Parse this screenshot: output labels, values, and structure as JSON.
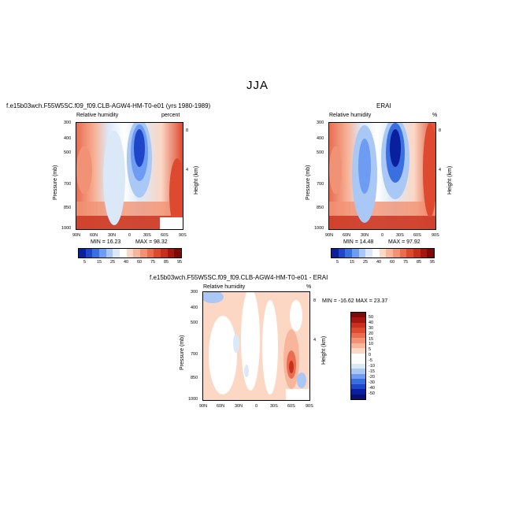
{
  "season": "JJA",
  "panels": [
    {
      "id": "model",
      "title": "f.e15b03wch.F55W5SC.f09_f09.CLB-AGW4-HM-T0-e01 (yrs 1980-1989)",
      "subtitle_left": "Relative humidity",
      "subtitle_right": "percent",
      "min_label": "MIN =   16.23",
      "max_label": "MAX =   98.32"
    },
    {
      "id": "obs",
      "title": "ERAI",
      "subtitle_left": "Relative humidity",
      "subtitle_right": "%",
      "min_label": "MIN =   14.48",
      "max_label": "MAX =   97.92"
    },
    {
      "id": "diff",
      "title": "f.e15b03wch.F55W5SC.f09_f09.CLB-AGW4-HM-T0-e01 - ERAI",
      "subtitle_left": "Relative humidity",
      "subtitle_right": "%",
      "minmax_label": "MIN = -16.62   MAX =  23.37"
    }
  ],
  "axes": {
    "ylabel": "Pressure (mb)",
    "y2label": "Height (km)",
    "pressure_ticks": [
      "300",
      "400",
      "500",
      "700",
      "850",
      "1000"
    ],
    "height_ticks": [
      "8",
      "4"
    ],
    "lat_ticks": [
      "90N",
      "60N",
      "30N",
      "0",
      "30S",
      "60S",
      "90S"
    ]
  },
  "colors": {
    "abs_scale": [
      "#0a1f9e",
      "#1f45c9",
      "#3a6fe0",
      "#6d9cf2",
      "#a9c8f5",
      "#dbe8f8",
      "#ffffff",
      "#fbd7c4",
      "#f7b59b",
      "#f29274",
      "#ea6d50",
      "#dd4a30",
      "#c7301d",
      "#a51610",
      "#7d0a08"
    ],
    "diff_scale": [
      "#7d0a08",
      "#a51610",
      "#c7301d",
      "#dd4a30",
      "#ea6d50",
      "#f29274",
      "#f7b59b",
      "#fbd7c4",
      "#ffffff",
      "#ffffff",
      "#dbe8f8",
      "#a9c8f5",
      "#6d9cf2",
      "#3a6fe0",
      "#1f45c9",
      "#0a1f9e",
      "#0a0f70"
    ]
  },
  "chart_data": [
    {
      "type": "heatmap",
      "title": "f.e15b03wch.F55W5SC.f09_f09.CLB-AGW4-HM-T0-e01 (yrs 1980-1989)",
      "variable": "Relative humidity",
      "units": "percent",
      "xlabel": "",
      "ylabel": "Pressure (mb)",
      "y2label": "Height (km)",
      "x": [
        "90N",
        "60N",
        "30N",
        "0",
        "30S",
        "60S",
        "90S"
      ],
      "y": [
        300,
        400,
        500,
        700,
        850,
        1000
      ],
      "min": 16.23,
      "max": 98.32,
      "colorbar_levels": [
        5,
        15,
        25,
        40,
        60,
        75,
        85,
        95
      ]
    },
    {
      "type": "heatmap",
      "title": "ERAI",
      "variable": "Relative humidity",
      "units": "%",
      "xlabel": "",
      "ylabel": "Pressure (mb)",
      "y2label": "Height (km)",
      "x": [
        "90N",
        "60N",
        "30N",
        "0",
        "30S",
        "60S",
        "90S"
      ],
      "y": [
        300,
        400,
        500,
        700,
        850,
        1000
      ],
      "min": 14.48,
      "max": 97.92,
      "colorbar_levels": [
        5,
        15,
        25,
        40,
        60,
        75,
        85,
        95
      ]
    },
    {
      "type": "heatmap",
      "title": "f.e15b03wch.F55W5SC.f09_f09.CLB-AGW4-HM-T0-e01 - ERAI",
      "variable": "Relative humidity",
      "units": "%",
      "xlabel": "",
      "ylabel": "Pressure (mb)",
      "y2label": "Height (km)",
      "x": [
        "90N",
        "60N",
        "30N",
        "0",
        "30S",
        "60S",
        "90S"
      ],
      "y": [
        300,
        400,
        500,
        700,
        850,
        1000
      ],
      "min": -16.62,
      "max": 23.37,
      "colorbar_levels": [
        50,
        40,
        30,
        20,
        15,
        10,
        5,
        0,
        -5,
        -10,
        -15,
        -20,
        -30,
        -40,
        -50
      ]
    }
  ]
}
